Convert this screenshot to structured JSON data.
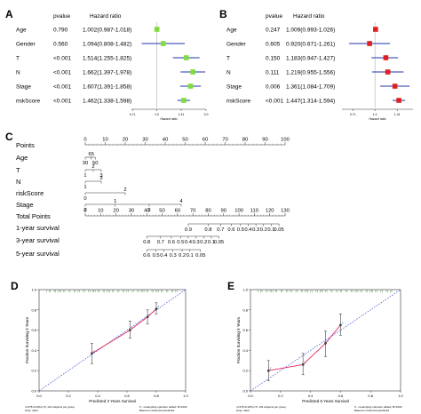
{
  "panel_labels": {
    "A": "A",
    "B": "B",
    "C": "C",
    "D": "D",
    "E": "E"
  },
  "chart_data": [
    {
      "panel": "A",
      "type": "forest",
      "header_pvalue": "pvalue",
      "header_hr": "Hazard ratio",
      "rows": [
        {
          "label": "Age",
          "pvalue": "0.790",
          "hr_text": "1.002(0.987-1.018)",
          "hr": 1.002,
          "lo": 0.987,
          "hi": 1.018
        },
        {
          "label": "Gender",
          "pvalue": "0.560",
          "hr_text": "1.094(0.808-1.482)",
          "hr": 1.094,
          "lo": 0.808,
          "hi": 1.482
        },
        {
          "label": "T",
          "pvalue": "<0.001",
          "hr_text": "1.514(1.255-1.825)",
          "hr": 1.514,
          "lo": 1.255,
          "hi": 1.825
        },
        {
          "label": "N",
          "pvalue": "<0.001",
          "hr_text": "1.662(1.397-1.978)",
          "hr": 1.662,
          "lo": 1.397,
          "hi": 1.978
        },
        {
          "label": "Stage",
          "pvalue": "<0.001",
          "hr_text": "1.607(1.391-1.858)",
          "hr": 1.607,
          "lo": 1.391,
          "hi": 1.858
        },
        {
          "label": "riskScore",
          "pvalue": "<0.001",
          "hr_text": "1.462(1.338-1.598)",
          "hr": 1.462,
          "lo": 1.338,
          "hi": 1.598
        }
      ],
      "xlim": [
        0.7,
        2.0
      ],
      "xticks": [
        "0.71",
        "1.0",
        "1.41",
        "2.0"
      ],
      "xlabel": "Hazard ratio",
      "marker_color": "#7ddc3e"
    },
    {
      "panel": "B",
      "type": "forest",
      "header_pvalue": "pvalue",
      "header_hr": "Hazard ratio",
      "rows": [
        {
          "label": "Age",
          "pvalue": "0.247",
          "hr_text": "1.009(0.993-1.026)",
          "hr": 1.009,
          "lo": 0.993,
          "hi": 1.026
        },
        {
          "label": "Gender",
          "pvalue": "0.605",
          "hr_text": "0.920(0.671-1.261)",
          "hr": 0.92,
          "lo": 0.671,
          "hi": 1.261
        },
        {
          "label": "T",
          "pvalue": "0.150",
          "hr_text": "1.183(0.947-1.427)",
          "hr": 1.183,
          "lo": 0.947,
          "hi": 1.427
        },
        {
          "label": "N",
          "pvalue": "0.111",
          "hr_text": "1.219(0.955-1.556)",
          "hr": 1.219,
          "lo": 0.955,
          "hi": 1.556
        },
        {
          "label": "Stage",
          "pvalue": "0.006",
          "hr_text": "1.361(1.084-1.709)",
          "hr": 1.361,
          "lo": 1.084,
          "hi": 1.709
        },
        {
          "label": "riskScore",
          "pvalue": "<0.001",
          "hr_text": "1.447(1.314-1.594)",
          "hr": 1.447,
          "lo": 1.314,
          "hi": 1.594
        }
      ],
      "xlim": [
        0.6,
        1.8
      ],
      "xticks": [
        "0.71",
        "1.0",
        "1.41"
      ],
      "xlabel": "Hazard ratio",
      "marker_color": "#e02020"
    },
    {
      "panel": "C",
      "type": "nomogram",
      "rows": [
        {
          "label": "Points",
          "kind": "scale",
          "range": [
            0,
            100
          ],
          "ticks": [
            "0",
            "10",
            "20",
            "30",
            "40",
            "50",
            "60",
            "70",
            "80",
            "90",
            "100"
          ]
        },
        {
          "label": "Age",
          "kind": "ticks",
          "ticks": [
            {
              "v": 0,
              "t": "30"
            },
            {
              "v": 3,
              "t": "65"
            },
            {
              "v": 5,
              "t": "50"
            }
          ]
        },
        {
          "label": "T",
          "kind": "ticks",
          "ticks": [
            {
              "v": 0,
              "t": "1"
            },
            {
              "v": 4,
              "t": "2"
            },
            {
              "v": 8,
              "t": "3"
            }
          ]
        },
        {
          "label": "N",
          "kind": "ticks",
          "ticks": [
            {
              "v": 0,
              "t": "1"
            },
            {
              "v": 8,
              "t": "3"
            }
          ]
        },
        {
          "label": "riskScore",
          "kind": "ticks",
          "ticks": [
            {
              "v": 0,
              "t": "0"
            },
            {
              "v": 20,
              "t": "2"
            }
          ]
        },
        {
          "label": "Stage",
          "kind": "ticks",
          "ticks": [
            {
              "v": 0,
              "t": "2"
            },
            {
              "v": 15,
              "t": "1"
            },
            {
              "v": 32,
              "t": "3"
            },
            {
              "v": 48,
              "t": "4"
            }
          ]
        },
        {
          "label": "Total Points",
          "kind": "scale",
          "range": [
            0,
            130
          ],
          "ticks": [
            "0",
            "10",
            "20",
            "30",
            "40",
            "50",
            "60",
            "70",
            "80",
            "90",
            "100",
            "110",
            "120",
            "130"
          ]
        },
        {
          "label": "1-year survival",
          "kind": "ticks",
          "ticks": [
            {
              "v": 67,
              "t": "0.9"
            },
            {
              "v": 80,
              "t": "0.8"
            },
            {
              "v": 88,
              "t": "0.7"
            },
            {
              "v": 95,
              "t": "0.6"
            },
            {
              "v": 101,
              "t": "0.5"
            },
            {
              "v": 106,
              "t": "0.4"
            },
            {
              "v": 111,
              "t": "0.3"
            },
            {
              "v": 116,
              "t": "0.2"
            },
            {
              "v": 121,
              "t": "0.1"
            },
            {
              "v": 126,
              "t": "0.05"
            }
          ]
        },
        {
          "label": "3-year survival",
          "kind": "ticks",
          "ticks": [
            {
              "v": 40,
              "t": "0.8"
            },
            {
              "v": 49,
              "t": "0.7"
            },
            {
              "v": 56,
              "t": "0.6"
            },
            {
              "v": 62,
              "t": "0.5"
            },
            {
              "v": 67,
              "t": "0.4"
            },
            {
              "v": 72,
              "t": "0.3"
            },
            {
              "v": 77,
              "t": "0.2"
            },
            {
              "v": 82,
              "t": "0.1"
            },
            {
              "v": 87,
              "t": "0.05"
            }
          ]
        },
        {
          "label": "5-year survival",
          "kind": "ticks",
          "ticks": [
            {
              "v": 40,
              "t": "0.6"
            },
            {
              "v": 46,
              "t": "0.5"
            },
            {
              "v": 51,
              "t": "0.4"
            },
            {
              "v": 57,
              "t": "0.3"
            },
            {
              "v": 63,
              "t": "0.2"
            },
            {
              "v": 68,
              "t": "0.1"
            },
            {
              "v": 75,
              "t": "0.05"
            }
          ]
        }
      ]
    },
    {
      "panel": "D",
      "type": "line",
      "xlabel": "Predicted 3 Years Survival",
      "ylabel": "Fraction Surviving 3 Years",
      "xlim": [
        0,
        1
      ],
      "ylim": [
        0,
        1
      ],
      "xticks": [
        "0.0",
        "0.2",
        "0.4",
        "0.6",
        "0.8",
        "1.0"
      ],
      "yticks": [
        "0.0",
        "0.2",
        "0.4",
        "0.6",
        "0.8",
        "1.0"
      ],
      "footnote_left": "n=478 d=109 p=5, 101 subjects per group\nGray: ideal",
      "footnote_right": "X - resampling optimism added, B=1000\nBased on observed-predicted",
      "points": [
        {
          "x": 0.36,
          "y": 0.37,
          "lo": 0.27,
          "hi": 0.47
        },
        {
          "x": 0.62,
          "y": 0.6,
          "lo": 0.52,
          "hi": 0.69
        },
        {
          "x": 0.74,
          "y": 0.73,
          "lo": 0.66,
          "hi": 0.8
        },
        {
          "x": 0.8,
          "y": 0.81,
          "lo": 0.76,
          "hi": 0.87
        }
      ]
    },
    {
      "panel": "E",
      "type": "line",
      "xlabel": "Predicted 5 Years Survival",
      "ylabel": "Fraction Surviving 5 Years",
      "xlim": [
        0,
        1
      ],
      "ylim": [
        0,
        1
      ],
      "xticks": [
        "0.0",
        "0.2",
        "0.4",
        "0.6",
        "0.8",
        "1.0"
      ],
      "yticks": [
        "0.0",
        "0.2",
        "0.4",
        "0.6",
        "0.8",
        "1.0"
      ],
      "footnote_left": "n=478 d=105 p=5, 101 subjects per group\nGray: ideal",
      "footnote_right": "X - resampling optimism added, B=1000\nBased on observed-predicted",
      "points": [
        {
          "x": 0.12,
          "y": 0.2,
          "lo": 0.1,
          "hi": 0.3
        },
        {
          "x": 0.35,
          "y": 0.26,
          "lo": 0.16,
          "hi": 0.37
        },
        {
          "x": 0.5,
          "y": 0.47,
          "lo": 0.34,
          "hi": 0.59
        },
        {
          "x": 0.6,
          "y": 0.65,
          "lo": 0.55,
          "hi": 0.76
        }
      ]
    }
  ]
}
